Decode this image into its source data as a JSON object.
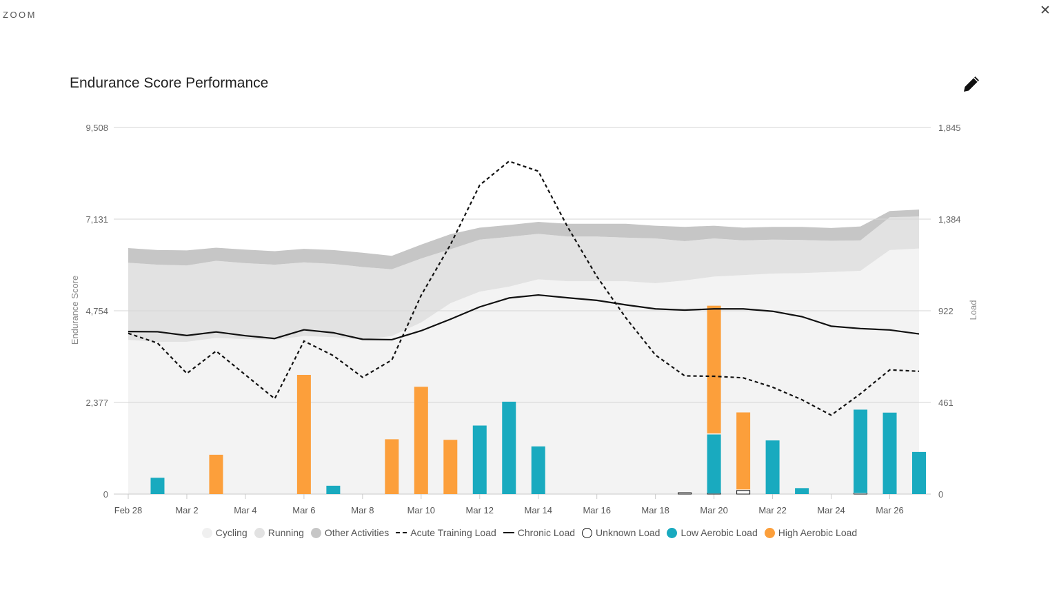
{
  "header": {
    "zoom_label": "ZOOM",
    "close_symbol": "✕",
    "title": "Endurance Score Performance",
    "edit_icon": "pencil-icon"
  },
  "chart_data": {
    "type": "area",
    "title": "Endurance Score Performance",
    "ylabel_left": "Endurance Score",
    "ylabel_right": "Load",
    "y_left_ticks": [
      "0",
      "2,377",
      "4,754",
      "7,131",
      "9,508"
    ],
    "y_right_ticks": [
      "0",
      "461",
      "922",
      "1,384",
      "1,845"
    ],
    "ylim_left": [
      0,
      9508
    ],
    "ylim_right": [
      0,
      1845
    ],
    "grid": true,
    "legend_position": "bottom",
    "x": [
      "Feb 28",
      "Mar 1",
      "Mar 2",
      "Mar 3",
      "Mar 4",
      "Mar 5",
      "Mar 6",
      "Mar 7",
      "Mar 8",
      "Mar 9",
      "Mar 10",
      "Mar 11",
      "Mar 12",
      "Mar 13",
      "Mar 14",
      "Mar 15",
      "Mar 16",
      "Mar 17",
      "Mar 18",
      "Mar 19",
      "Mar 20",
      "Mar 21",
      "Mar 22",
      "Mar 23",
      "Mar 24",
      "Mar 25",
      "Mar 26",
      "Mar 27"
    ],
    "x_tick_labels": [
      "Feb 28",
      "Mar 2",
      "Mar 4",
      "Mar 6",
      "Mar 8",
      "Mar 10",
      "Mar 12",
      "Mar 14",
      "Mar 16",
      "Mar 18",
      "Mar 20",
      "Mar 22",
      "Mar 24",
      "Mar 26"
    ],
    "colors": {
      "cycling": "#f3f3f3",
      "running": "#e2e2e2",
      "other_activities": "#c6c6c6",
      "low_aerobic": "#19aabf",
      "high_aerobic": "#fc9f3b",
      "line": "#111111",
      "gridline": "#d6d6d6"
    },
    "legend": [
      {
        "label": "Cycling",
        "symbol": "dot",
        "color": "#f0f0f0"
      },
      {
        "label": "Running",
        "symbol": "dot",
        "color": "#e2e2e2"
      },
      {
        "label": "Other Activities",
        "symbol": "dot",
        "color": "#c6c6c6"
      },
      {
        "label": "Acute Training Load",
        "symbol": "dash",
        "color": "#111111"
      },
      {
        "label": "Chronic Load",
        "symbol": "line",
        "color": "#111111"
      },
      {
        "label": "Unknown Load",
        "symbol": "ring",
        "color": "#111111"
      },
      {
        "label": "Low Aerobic Load",
        "symbol": "dot",
        "color": "#19aabf"
      },
      {
        "label": "High Aerobic Load",
        "symbol": "dot",
        "color": "#fc9f3b"
      }
    ],
    "series": [
      {
        "name": "Cycling",
        "kind": "stacked-area",
        "axis": "left",
        "values": [
          4000,
          3950,
          3950,
          4050,
          4020,
          4000,
          4100,
          4070,
          4000,
          4100,
          4450,
          4950,
          5250,
          5380,
          5570,
          5520,
          5520,
          5520,
          5470,
          5540,
          5640,
          5680,
          5720,
          5730,
          5760,
          5790,
          6330,
          6370
        ]
      },
      {
        "name": "Running",
        "kind": "stacked-area",
        "axis": "left",
        "values": [
          6000,
          5950,
          5930,
          6050,
          5990,
          5950,
          6010,
          5970,
          5890,
          5830,
          6110,
          6350,
          6600,
          6670,
          6750,
          6680,
          6680,
          6650,
          6630,
          6560,
          6630,
          6580,
          6600,
          6590,
          6570,
          6580,
          7180,
          7200
        ]
      },
      {
        "name": "Other Activities",
        "kind": "stacked-area",
        "axis": "left",
        "values": [
          6380,
          6330,
          6320,
          6390,
          6340,
          6300,
          6360,
          6330,
          6260,
          6180,
          6470,
          6740,
          6910,
          6980,
          7060,
          7010,
          7010,
          7010,
          6960,
          6930,
          6960,
          6910,
          6930,
          6930,
          6900,
          6940,
          7340,
          7380
        ]
      },
      {
        "name": "Acute Training Load",
        "kind": "line",
        "dash": true,
        "axis": "right",
        "values": [
          809,
          760,
          607,
          720,
          600,
          480,
          770,
          697,
          588,
          675,
          1000,
          1255,
          1555,
          1675,
          1625,
          1345,
          1095,
          885,
          700,
          595,
          593,
          585,
          538,
          475,
          397,
          505,
          625,
          618
        ]
      },
      {
        "name": "Chronic Load",
        "kind": "line",
        "dash": false,
        "axis": "right",
        "values": [
          818,
          817,
          798,
          816,
          797,
          783,
          827,
          812,
          779,
          777,
          822,
          880,
          942,
          987,
          1002,
          988,
          975,
          952,
          932,
          926,
          932,
          932,
          920,
          893,
          845,
          833,
          826,
          806
        ]
      },
      {
        "name": "Low Aerobic Load",
        "kind": "bar",
        "axis": "right",
        "values": [
          0,
          82,
          0,
          0,
          0,
          0,
          0,
          42,
          0,
          0,
          0,
          0,
          345,
          465,
          240,
          0,
          0,
          0,
          0,
          0,
          297,
          0,
          270,
          30,
          0,
          420,
          410,
          212
        ]
      },
      {
        "name": "High Aerobic Load",
        "kind": "bar",
        "axis": "right",
        "values": [
          0,
          0,
          0,
          198,
          0,
          0,
          600,
          0,
          0,
          276,
          540,
          273,
          0,
          0,
          0,
          0,
          0,
          0,
          0,
          0,
          648,
          393,
          0,
          0,
          0,
          0,
          0,
          0
        ]
      },
      {
        "name": "Unknown Load",
        "kind": "bar",
        "axis": "right",
        "values": [
          0,
          0,
          0,
          0,
          0,
          0,
          0,
          0,
          0,
          0,
          0,
          0,
          0,
          0,
          0,
          0,
          0,
          0,
          0,
          3,
          3,
          18,
          0,
          0,
          0,
          5,
          0,
          0
        ]
      }
    ]
  }
}
